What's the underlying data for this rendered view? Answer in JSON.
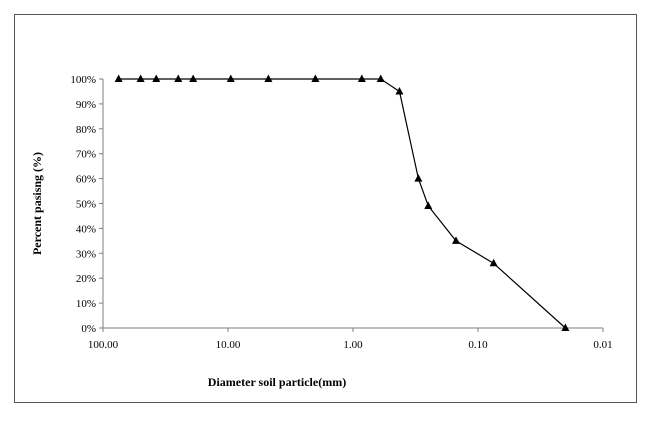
{
  "chart_data": {
    "type": "scatter",
    "title": "",
    "xlabel": "Diameter soil particle(mm)",
    "ylabel": "Percent pasisng (%)",
    "x_scale": "log",
    "x_reversed": true,
    "xlim": [
      100,
      0.01
    ],
    "ylim": [
      0,
      1
    ],
    "x_tick_values": [
      100,
      10,
      1,
      0.1,
      0.01
    ],
    "x_tick_labels": [
      "100.00",
      "10.00",
      "1.00",
      "0.10",
      "0.01"
    ],
    "y_tick_values": [
      0,
      0.1,
      0.2,
      0.3,
      0.4,
      0.5,
      0.6,
      0.7,
      0.8,
      0.9,
      1.0
    ],
    "y_tick_labels": [
      "0%",
      "10%",
      "20%",
      "30%",
      "40%",
      "50%",
      "60%",
      "70%",
      "80%",
      "90%",
      "100%"
    ],
    "grid": false,
    "series": [
      {
        "marker": "triangle",
        "line": true,
        "color": "#000000",
        "x": [
          75,
          50,
          37.5,
          25,
          19,
          9.5,
          4.75,
          2,
          0.85,
          0.6,
          0.425,
          0.3,
          0.25,
          0.15,
          0.075,
          0.02
        ],
        "y": [
          1.0,
          1.0,
          1.0,
          1.0,
          1.0,
          1.0,
          1.0,
          1.0,
          1.0,
          1.0,
          0.95,
          0.6,
          0.49,
          0.35,
          0.26,
          0.0
        ]
      }
    ]
  }
}
